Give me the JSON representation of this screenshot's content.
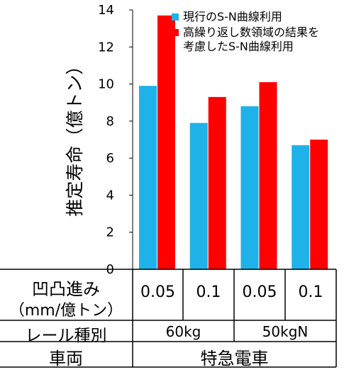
{
  "chart_data": {
    "type": "bar",
    "ylabel": "推定寿命（億トン）",
    "ylim": [
      0,
      14
    ],
    "yticks": [
      "0",
      "2",
      "4",
      "6",
      "8",
      "10",
      "12",
      "14"
    ],
    "categories": [
      "0.05",
      "0.1",
      "0.05",
      "0.1"
    ],
    "series": [
      {
        "name": "現行のS-N曲線利用",
        "color": "#1fb2e8",
        "values": [
          9.9,
          7.9,
          8.8,
          6.7
        ]
      },
      {
        "name": "高繰り返し数領域の結果を考慮したS-N曲線利用",
        "color": "#ff0000",
        "values": [
          13.7,
          9.3,
          10.1,
          7.0
        ]
      }
    ],
    "legend_position": "top-right",
    "grid": false
  },
  "table": {
    "row1_label_line1": "凹凸進み",
    "row1_label_line2": "（mm/億トン）",
    "row2_label": "レール種別",
    "row2_values": [
      "60kg",
      "50kgN"
    ],
    "row3_label": "車両",
    "row3_value": "特急電車"
  }
}
